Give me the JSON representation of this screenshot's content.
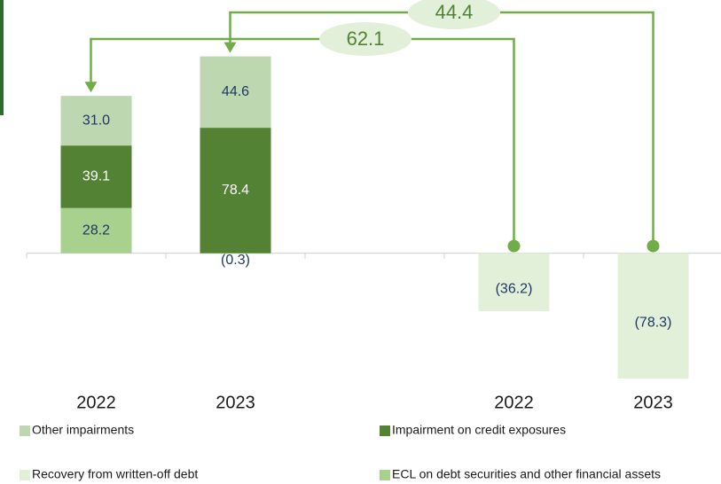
{
  "chart_data": {
    "type": "bar",
    "categories": [
      "2022",
      "2023",
      null,
      "2022",
      "2023"
    ],
    "series": [
      {
        "name": "Other impairments",
        "color": "#bdd7b0",
        "values": [
          31.0,
          44.6,
          null,
          null,
          null
        ],
        "value_labels": [
          "31.0",
          "44.6",
          null,
          null,
          null
        ]
      },
      {
        "name": "Impairment on credit exposures",
        "color": "#548235",
        "values": [
          39.1,
          78.4,
          null,
          null,
          null
        ],
        "value_labels": [
          "39.1",
          "78.4",
          null,
          null,
          null
        ]
      },
      {
        "name": "Recovery from written-off debt",
        "color": "#e2efd9",
        "values": [
          null,
          null,
          null,
          -36.2,
          -78.3
        ],
        "value_labels": [
          null,
          null,
          null,
          "(36.2)",
          "(78.3)"
        ]
      },
      {
        "name": "ECL on debt securities and other financial assets",
        "color": "#a9d18e",
        "values": [
          28.2,
          -0.3,
          null,
          null,
          null
        ],
        "value_labels": [
          "28.2",
          "(0.3)",
          null,
          null,
          null
        ]
      }
    ],
    "annotations": [
      {
        "text": "62.1"
      },
      {
        "text": "44.4"
      }
    ],
    "ylim": [
      -80,
      125
    ]
  }
}
